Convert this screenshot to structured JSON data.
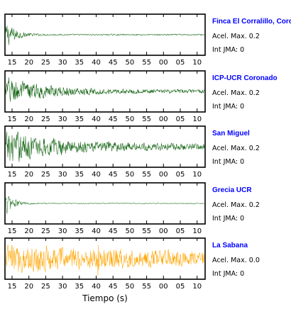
{
  "chart_data": {
    "type": "line",
    "xlabel": "Tiempo (s)",
    "x_tick_labels": [
      "15",
      "20",
      "25",
      "30",
      "35",
      "40",
      "45",
      "50",
      "55",
      "00",
      "05",
      "10"
    ],
    "colors": {
      "frame": "#000000",
      "station_name": "#0000ff"
    },
    "panels": [
      {
        "station": "Finca El Corralillo, Coro",
        "peak_label": "Acel. Max. 0.2",
        "jma_label": "Int JMA: 0",
        "color": "#1a6b1a",
        "amplitude": 0.95,
        "decay": 0.075,
        "floor": 0.045,
        "spike_x": null
      },
      {
        "station": "ICP-UCR Coronado",
        "peak_label": "Acel. Max. 0.2",
        "jma_label": "Int JMA: 0",
        "color": "#0b5e0b",
        "amplitude": 0.85,
        "decay": 0.02,
        "floor": 0.12,
        "spike_x": null
      },
      {
        "station": "San Miguel",
        "peak_label": "Acel. Max. 0.2",
        "jma_label": "Int JMA: 0",
        "color": "#0e610e",
        "amplitude": 0.95,
        "decay": 0.015,
        "floor": 0.2,
        "spike_x": null
      },
      {
        "station": "Grecia UCR",
        "peak_label": "Acel. Max. 0.2",
        "jma_label": "Int JMA: 0",
        "color": "#2d7a2d",
        "amplitude": 0.9,
        "decay": 0.09,
        "floor": 0.03,
        "spike_x": null
      },
      {
        "station": "La Sabana",
        "peak_label": "Acel. Max. 0.0",
        "jma_label": "Int JMA: 0",
        "color": "#ffa500",
        "amplitude": 0.7,
        "decay": 0.004,
        "floor": 0.25,
        "spike_x": 40.5
      }
    ]
  }
}
